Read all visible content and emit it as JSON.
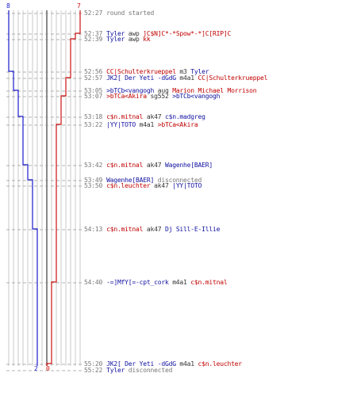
{
  "colors": {
    "blue_team": "#1a1acc",
    "red_team": "#cc1010",
    "text_blue": "#1010a0",
    "text_red": "#c00000",
    "timestamp": "#777777",
    "grid": "#bbbbbb",
    "center_axis": "#555555"
  },
  "scores": {
    "blue_top": "8",
    "red_top": "7",
    "blue_bottom": "2",
    "red_bottom": "0"
  },
  "log": [
    {
      "time": "52:27",
      "parts": [
        {
          "t": "round started",
          "c": "gray"
        }
      ]
    },
    {
      "time": "52:37",
      "parts": [
        {
          "t": "Tyler",
          "c": "blue"
        },
        {
          "t": " awp ",
          "c": "dark"
        },
        {
          "t": "]C$N]C*-*Spow*-*]C[RIP]C",
          "c": "red"
        }
      ]
    },
    {
      "time": "52:39",
      "parts": [
        {
          "t": "Tyler",
          "c": "blue"
        },
        {
          "t": " awp ",
          "c": "dark"
        },
        {
          "t": "kk",
          "c": "red"
        }
      ]
    },
    {
      "time": "52:56",
      "parts": [
        {
          "t": "CC|Schulterkrueppel",
          "c": "red"
        },
        {
          "t": " m3 ",
          "c": "dark"
        },
        {
          "t": "Tyler",
          "c": "blue"
        }
      ]
    },
    {
      "time": "52:57",
      "parts": [
        {
          "t": "JK2[ Der Yeti -dGdG",
          "c": "blue"
        },
        {
          "t": " m4a1 ",
          "c": "dark"
        },
        {
          "t": "CC|Schulterkrueppel",
          "c": "red"
        }
      ]
    },
    {
      "time": "53:05",
      "parts": [
        {
          "t": ">bTCb<vangogh",
          "c": "blue"
        },
        {
          "t": " aug ",
          "c": "dark"
        },
        {
          "t": "Marion Michael Morrison",
          "c": "red"
        }
      ]
    },
    {
      "time": "53:07",
      "parts": [
        {
          "t": ">bTCa<Akira",
          "c": "red"
        },
        {
          "t": " sg552 ",
          "c": "dark"
        },
        {
          "t": ">bTCb<vangogh",
          "c": "blue"
        }
      ]
    },
    {
      "time": "53:18",
      "parts": [
        {
          "t": "c$n.mitnal",
          "c": "red"
        },
        {
          "t": " ak47 ",
          "c": "dark"
        },
        {
          "t": "c$n.madgreg",
          "c": "blue"
        }
      ]
    },
    {
      "time": "53:22",
      "parts": [
        {
          "t": "|YY|TOTO",
          "c": "blue"
        },
        {
          "t": " m4a1 ",
          "c": "dark"
        },
        {
          "t": ">bTCa<Akira",
          "c": "red"
        }
      ]
    },
    {
      "time": "53:42",
      "parts": [
        {
          "t": "c$n.mitnal",
          "c": "red"
        },
        {
          "t": " ak47 ",
          "c": "dark"
        },
        {
          "t": "Wagenhe[BAER]",
          "c": "blue"
        }
      ]
    },
    {
      "time": "53:49",
      "parts": [
        {
          "t": "Wagenhe[BAER]",
          "c": "blue"
        },
        {
          "t": " disconnected",
          "c": "gray"
        }
      ]
    },
    {
      "time": "53:50",
      "parts": [
        {
          "t": "c$n.leuchter",
          "c": "red"
        },
        {
          "t": " ak47 ",
          "c": "dark"
        },
        {
          "t": "|YY|TOTO",
          "c": "blue"
        }
      ]
    },
    {
      "time": "54:13",
      "parts": [
        {
          "t": "c$n.mitnal",
          "c": "red"
        },
        {
          "t": " ak47 ",
          "c": "dark"
        },
        {
          "t": "Dj Sill-E-Illie",
          "c": "blue"
        }
      ]
    },
    {
      "time": "54:40",
      "parts": [
        {
          "t": "-=]MfY[=-cpt_cork",
          "c": "blue"
        },
        {
          "t": " m4a1 ",
          "c": "dark"
        },
        {
          "t": "c$n.mitnal",
          "c": "red"
        }
      ]
    },
    {
      "time": "55:20",
      "parts": [
        {
          "t": "JK2[ Der Yeti -dGdG",
          "c": "blue"
        },
        {
          "t": " m4a1 ",
          "c": "dark"
        },
        {
          "t": "c$n.leuchter",
          "c": "red"
        }
      ]
    },
    {
      "time": "55:22",
      "parts": [
        {
          "t": "Tyler",
          "c": "blue"
        },
        {
          "t": " disconnected",
          "c": "gray"
        }
      ]
    }
  ]
}
